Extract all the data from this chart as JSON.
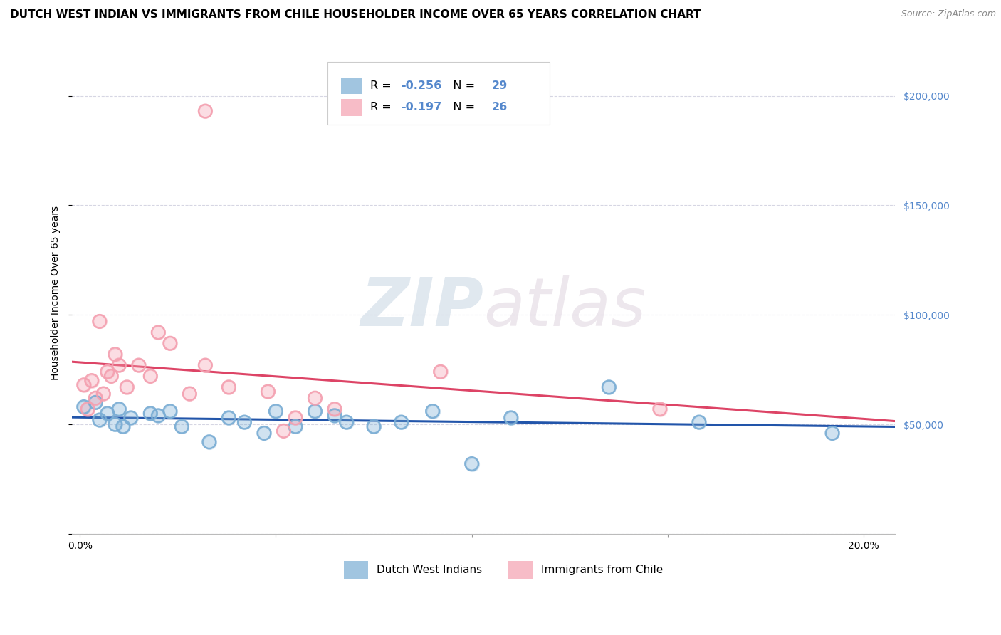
{
  "title": "DUTCH WEST INDIAN VS IMMIGRANTS FROM CHILE HOUSEHOLDER INCOME OVER 65 YEARS CORRELATION CHART",
  "source": "Source: ZipAtlas.com",
  "ylabel": "Householder Income Over 65 years",
  "watermark_zip": "ZIP",
  "watermark_atlas": "atlas",
  "legend_blue_r_val": "-0.256",
  "legend_blue_n_val": "29",
  "legend_pink_r_val": "-0.197",
  "legend_pink_n_val": "26",
  "legend_label_blue": "Dutch West Indians",
  "legend_label_pink": "Immigrants from Chile",
  "blue_color": "#7AADD4",
  "pink_color": "#F4A0B0",
  "blue_line_color": "#2255AA",
  "pink_line_color": "#DD4466",
  "yaxis_color": "#5588CC",
  "ylim": [
    0,
    220000
  ],
  "xlim": [
    -0.002,
    0.208
  ],
  "yticks": [
    0,
    50000,
    100000,
    150000,
    200000
  ],
  "xticks": [
    0.0,
    0.05,
    0.1,
    0.15,
    0.2
  ],
  "background_color": "#FFFFFF",
  "grid_color": "#CCCCDD",
  "blue_x": [
    0.001,
    0.004,
    0.005,
    0.007,
    0.009,
    0.01,
    0.011,
    0.013,
    0.018,
    0.02,
    0.023,
    0.026,
    0.033,
    0.038,
    0.042,
    0.047,
    0.05,
    0.055,
    0.06,
    0.065,
    0.068,
    0.075,
    0.082,
    0.09,
    0.1,
    0.11,
    0.135,
    0.158,
    0.192
  ],
  "blue_y": [
    58000,
    60000,
    52000,
    55000,
    50000,
    57000,
    49000,
    53000,
    55000,
    54000,
    56000,
    49000,
    42000,
    53000,
    51000,
    46000,
    56000,
    49000,
    56000,
    54000,
    51000,
    49000,
    51000,
    56000,
    32000,
    53000,
    67000,
    51000,
    46000
  ],
  "pink_x": [
    0.001,
    0.002,
    0.003,
    0.004,
    0.005,
    0.006,
    0.007,
    0.008,
    0.009,
    0.01,
    0.012,
    0.015,
    0.018,
    0.02,
    0.023,
    0.028,
    0.032,
    0.038,
    0.048,
    0.052,
    0.06,
    0.065,
    0.092,
    0.148,
    0.032,
    0.055
  ],
  "pink_y": [
    68000,
    57000,
    70000,
    62000,
    97000,
    64000,
    74000,
    72000,
    82000,
    77000,
    67000,
    77000,
    72000,
    92000,
    87000,
    64000,
    77000,
    67000,
    65000,
    47000,
    62000,
    57000,
    74000,
    57000,
    193000,
    53000
  ],
  "title_fontsize": 11,
  "source_fontsize": 9,
  "axis_label_fontsize": 10,
  "tick_fontsize": 10
}
